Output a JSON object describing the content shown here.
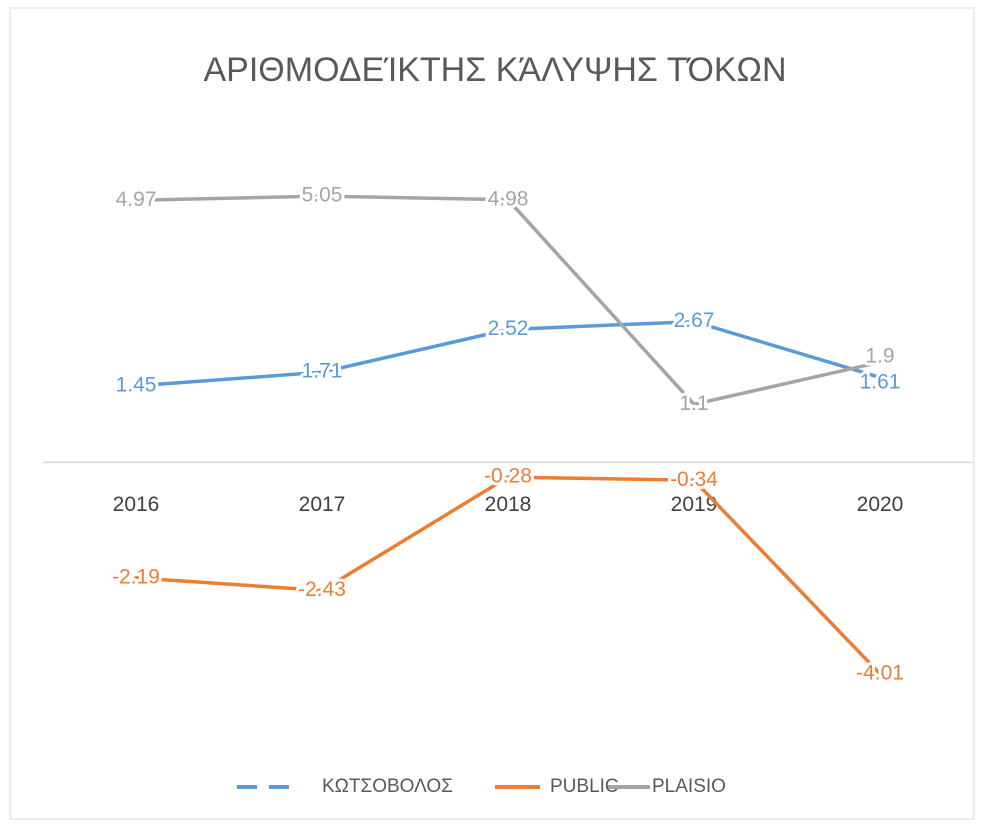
{
  "chart_data": {
    "type": "line",
    "title": "ΑΡΙΘΜΟΔΕΊΚΤΗΣ ΚΆΛΥΨΗΣ ΤΌΚΩΝ",
    "categories": [
      "2016",
      "2017",
      "2018",
      "2019",
      "2020"
    ],
    "series": [
      {
        "name": "ΚΩΤΣΟΒΟΛΟΣ",
        "color": "#5b9bd5",
        "values": [
          1.45,
          1.71,
          2.52,
          2.67,
          1.61
        ]
      },
      {
        "name": "PUBLIC",
        "color": "#ed7d31",
        "values": [
          -2.19,
          -2.43,
          -0.28,
          -0.34,
          -4.01
        ]
      },
      {
        "name": "PLAISIO",
        "color": "#a5a5a5",
        "values": [
          4.97,
          5.05,
          4.98,
          1.1,
          1.9
        ]
      }
    ],
    "ylim": [
      -5,
      6
    ],
    "legend": "bottom"
  }
}
